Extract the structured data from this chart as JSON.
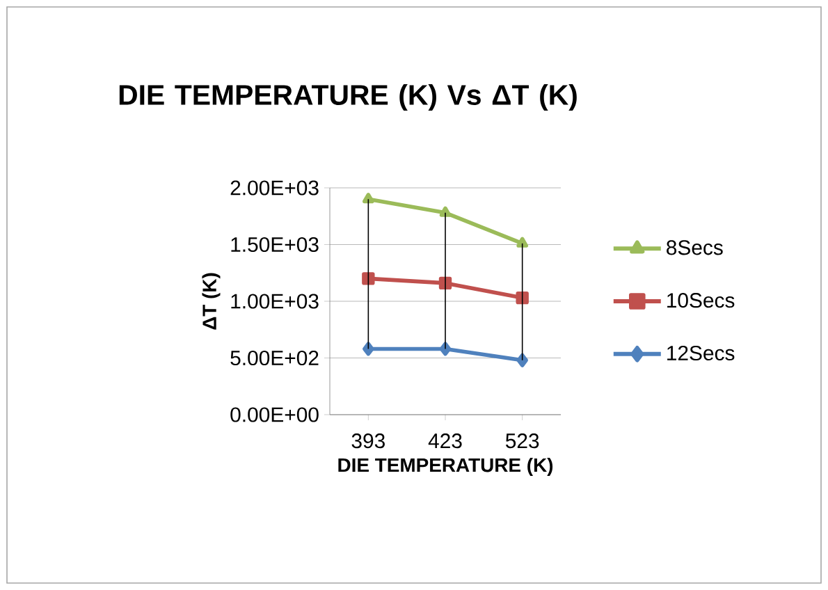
{
  "chart_data": {
    "type": "line",
    "title": "DIE TEMPERATURE (K) Vs ΔT (K)",
    "xlabel": "DIE TEMPERATURE (K)",
    "ylabel": "ΔT (K)",
    "categories": [
      "393",
      "423",
      "523"
    ],
    "series": [
      {
        "name": "8Secs",
        "color": "#9bbb59",
        "marker": "triangle",
        "values": [
          1900,
          1780,
          1510
        ]
      },
      {
        "name": "10Secs",
        "color": "#c0504d",
        "marker": "square",
        "values": [
          1200,
          1160,
          1030
        ]
      },
      {
        "name": "12Secs",
        "color": "#4f81bd",
        "marker": "diamond",
        "values": [
          580,
          580,
          480
        ],
        "errors": [
          [
            580,
            1900
          ],
          [
            580,
            1780
          ],
          [
            480,
            1510
          ]
        ]
      }
    ],
    "ylim": [
      0,
      2000
    ],
    "yticks": [
      {
        "value": 0,
        "label": "0.00E+00"
      },
      {
        "value": 500,
        "label": "5.00E+02"
      },
      {
        "value": 1000,
        "label": "1.00E+03"
      },
      {
        "value": 1500,
        "label": "1.50E+03"
      },
      {
        "value": 2000,
        "label": "2.00E+03"
      }
    ],
    "grid": "y",
    "legend": "right"
  }
}
